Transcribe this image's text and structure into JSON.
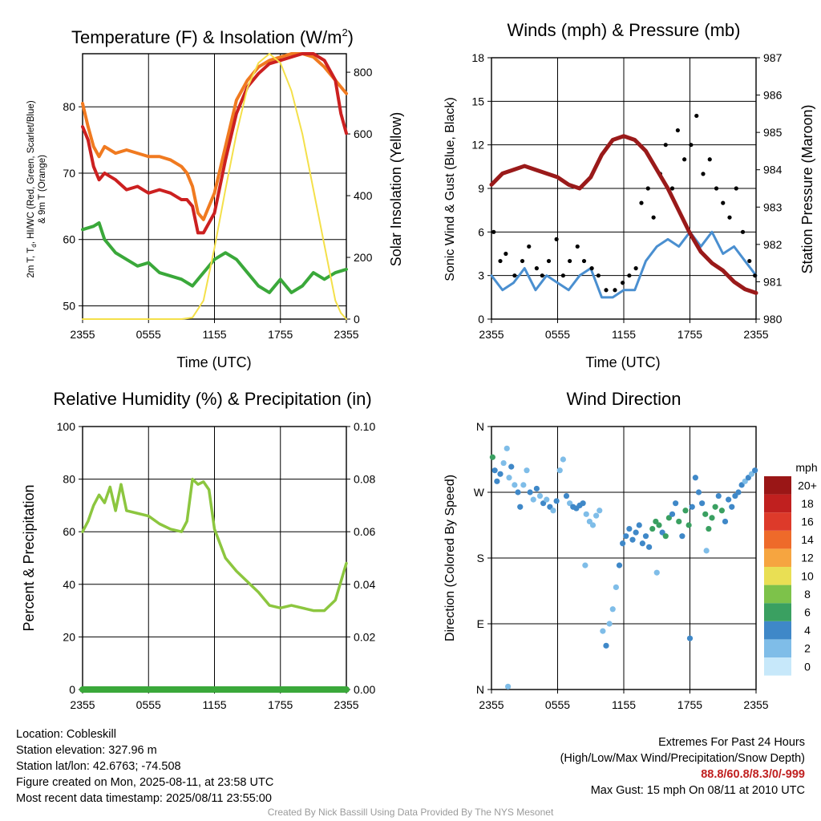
{
  "charts": {
    "temp": {
      "title": "Temperature (F) & Insolation (W/m",
      "title_sup": "2",
      "title_close": ")",
      "ylabel_left_l1": "2m T, T",
      "ylabel_left_sub": "d",
      "ylabel_left_l1b": ", HI/WC (Red, Green, Scarlet/Blue)",
      "ylabel_left_l2": "& 9m T (Orange)",
      "ylabel_right": "Solar Insolation (Yellow)",
      "xlabel": "Time (UTC)"
    },
    "wind": {
      "title": "Winds (mph) & Pressure (mb)",
      "ylabel_left": "Sonic Wind & Gust (Blue, Black)",
      "ylabel_right": "Station Pressure (Maroon)",
      "xlabel": "Time (UTC)"
    },
    "rh": {
      "title": "Relative Humidity (%) & Precipitation (in)",
      "ylabel_left": "Percent & Precipitation"
    },
    "dir": {
      "title": "Wind Direction",
      "ylabel_left": "Direction (Colored By Speed)",
      "legend_title": "mph"
    }
  },
  "chart_data": [
    {
      "id": "temp",
      "type": "line",
      "x_ticks": [
        "2355",
        "0555",
        "1155",
        "1755",
        "2355"
      ],
      "x_range_hours": [
        0,
        24
      ],
      "y_left_range": [
        48,
        88
      ],
      "y_left_ticks": [
        50,
        60,
        70,
        80
      ],
      "y_right_range": [
        0,
        860
      ],
      "y_right_ticks": [
        0,
        200,
        400,
        600,
        800
      ],
      "series": [
        {
          "color": "#f07a20",
          "x": [
            0,
            0.5,
            1,
            1.5,
            2,
            3,
            4,
            5,
            6,
            7,
            8,
            9,
            9.5,
            10,
            10.5,
            11,
            12,
            13,
            14,
            15,
            16,
            17,
            18,
            19,
            20,
            21,
            22,
            23,
            24
          ],
          "y": [
            80.5,
            77,
            74,
            72.5,
            74,
            73,
            73.5,
            73,
            72.5,
            72.5,
            72,
            71,
            70,
            68,
            64,
            63,
            67,
            74,
            81,
            84,
            86,
            87,
            87.5,
            88,
            88,
            87.5,
            86,
            84,
            82
          ]
        },
        {
          "color": "#cc2020",
          "x": [
            0,
            0.5,
            1,
            1.5,
            2,
            3,
            4,
            5,
            6,
            7,
            8,
            9,
            9.5,
            10,
            10.5,
            11,
            12,
            13,
            14,
            15,
            16,
            17,
            18,
            19,
            20,
            21,
            22,
            23,
            23.5,
            24
          ],
          "y": [
            77,
            75,
            71,
            69,
            70,
            69,
            67.5,
            68,
            67,
            67.5,
            67,
            66,
            66,
            65,
            61,
            61,
            64,
            72,
            79,
            83,
            85,
            86.5,
            87,
            87.5,
            88,
            88,
            87,
            84,
            79,
            76
          ]
        },
        {
          "color": "#3aa83a",
          "x": [
            0,
            1,
            1.5,
            2,
            3,
            4,
            5,
            6,
            7,
            8,
            9,
            10,
            11,
            12,
            13,
            14,
            15,
            16,
            17,
            18,
            19,
            20,
            21,
            22,
            23,
            24
          ],
          "y": [
            61.5,
            62,
            62.5,
            60,
            58,
            57,
            56,
            56.5,
            55,
            54.5,
            54,
            53,
            55,
            57,
            58,
            57,
            55,
            53,
            52,
            54,
            52,
            53,
            55,
            54,
            55,
            55.5
          ]
        },
        {
          "color": "#f4e04a",
          "axis": "right",
          "x": [
            0,
            9,
            10,
            11,
            12,
            13,
            14,
            15,
            16,
            17,
            18,
            19,
            20,
            21,
            22,
            23,
            23.5,
            24
          ],
          "y": [
            0,
            0,
            5,
            60,
            230,
            420,
            600,
            750,
            830,
            860,
            830,
            740,
            600,
            420,
            240,
            60,
            20,
            0
          ]
        }
      ]
    },
    {
      "id": "wind",
      "type": "line",
      "x_ticks": [
        "2355",
        "0555",
        "1155",
        "1755",
        "2355"
      ],
      "x_range_hours": [
        0,
        24
      ],
      "y_left_range": [
        0,
        18
      ],
      "y_left_ticks": [
        0,
        3,
        6,
        9,
        12,
        15,
        18
      ],
      "y_right_range": [
        980,
        987
      ],
      "y_right_ticks": [
        980,
        981,
        982,
        983,
        984,
        985,
        986,
        987
      ],
      "series": [
        {
          "color": "#4a8fd0",
          "x": [
            0,
            1,
            2,
            3,
            4,
            5,
            6,
            7,
            8,
            9,
            10,
            11,
            12,
            13,
            14,
            15,
            16,
            17,
            18,
            19,
            20,
            21,
            22,
            23,
            24
          ],
          "y": [
            3,
            2,
            2.5,
            3.5,
            2,
            3,
            2.5,
            2,
            3,
            3.5,
            1.5,
            1.5,
            2,
            2,
            4,
            5,
            5.5,
            5,
            6,
            5,
            6,
            4.5,
            5,
            4,
            3
          ]
        },
        {
          "color": "#000000",
          "kind": "points",
          "x": [
            0.2,
            0.8,
            1.3,
            2.1,
            2.8,
            3.4,
            4.1,
            4.6,
            5.2,
            5.9,
            6.5,
            7.1,
            7.8,
            8.4,
            9.1,
            9.7,
            10.4,
            11.2,
            11.9,
            12.5,
            13.1,
            13.6,
            14.2,
            14.7,
            15.3,
            15.8,
            16.4,
            16.9,
            17.5,
            18.1,
            18.6,
            19.2,
            19.8,
            20.4,
            21,
            21.6,
            22.2,
            22.8,
            23.4,
            23.9
          ],
          "y": [
            6,
            4,
            4.5,
            3,
            4,
            5,
            3.5,
            3,
            4,
            5.5,
            3,
            4,
            5,
            4,
            3.5,
            3,
            2,
            2,
            2.5,
            3,
            3.5,
            8,
            9,
            7,
            10,
            12,
            9,
            13,
            11,
            12,
            14,
            10,
            11,
            9,
            8,
            7,
            9,
            6,
            4,
            3
          ]
        },
        {
          "color": "#9a1a1a",
          "axis": "right",
          "x": [
            0,
            1,
            2,
            3,
            4,
            5,
            6,
            7,
            8,
            9,
            10,
            11,
            12,
            13,
            14,
            15,
            16,
            17,
            18,
            19,
            20,
            21,
            22,
            23,
            24
          ],
          "y": [
            983.6,
            983.9,
            984.0,
            984.1,
            984.0,
            983.9,
            983.8,
            983.6,
            983.5,
            983.8,
            984.4,
            984.8,
            984.9,
            984.8,
            984.5,
            984.0,
            983.5,
            982.9,
            982.3,
            981.8,
            981.5,
            981.3,
            981.0,
            980.8,
            980.7
          ]
        }
      ]
    },
    {
      "id": "rh",
      "type": "line",
      "x_ticks": [
        "2355",
        "0555",
        "1155",
        "1755",
        "2355"
      ],
      "x_range_hours": [
        0,
        24
      ],
      "y_left_range": [
        0,
        100
      ],
      "y_left_ticks": [
        0,
        20,
        40,
        60,
        80,
        100
      ],
      "y_right_range": [
        0,
        0.1
      ],
      "y_right_ticks": [
        "0.00",
        "0.02",
        "0.04",
        "0.06",
        "0.08",
        "0.10"
      ],
      "series": [
        {
          "color": "#8cc63f",
          "x": [
            0,
            0.5,
            1,
            1.5,
            2,
            2.5,
            3,
            3.5,
            4,
            5,
            6,
            7,
            8,
            9,
            9.5,
            10,
            10.5,
            11,
            11.5,
            12,
            13,
            14,
            15,
            16,
            17,
            18,
            19,
            20,
            21,
            22,
            23,
            23.5,
            24
          ],
          "y": [
            60,
            64,
            70,
            74,
            71,
            77,
            68,
            78,
            68,
            67,
            66,
            63,
            61,
            60,
            64,
            80,
            78,
            79,
            76,
            61,
            50,
            45,
            41,
            37,
            32,
            31,
            32,
            31,
            30,
            30,
            34,
            41,
            48
          ]
        },
        {
          "color": "#3aa83a",
          "axis": "right",
          "x": [
            0,
            24
          ],
          "y": [
            0,
            0
          ]
        }
      ]
    },
    {
      "id": "dir",
      "type": "scatter",
      "x_ticks": [
        "2355",
        "0555",
        "1155",
        "1755",
        "2355"
      ],
      "x_range_hours": [
        0,
        24
      ],
      "y_ticks": [
        "N",
        "E",
        "S",
        "W",
        "N"
      ],
      "y_range_deg": [
        0,
        360
      ],
      "legend": {
        "labels": [
          "0",
          "2",
          "4",
          "6",
          "8",
          "10",
          "12",
          "14",
          "16",
          "18",
          "20+"
        ],
        "colors": [
          "#c7e8fa",
          "#7fbde8",
          "#3f88c8",
          "#3aa061",
          "#7dc24a",
          "#e9df54",
          "#f6a540",
          "#ee6a2a",
          "#dd3a2a",
          "#c0201f",
          "#9a1616"
        ]
      },
      "points": [
        {
          "t": 0.1,
          "d": 318,
          "s": 5
        },
        {
          "t": 0.3,
          "d": 300,
          "s": 3
        },
        {
          "t": 0.5,
          "d": 285,
          "s": 4
        },
        {
          "t": 0.8,
          "d": 295,
          "s": 3
        },
        {
          "t": 1.1,
          "d": 310,
          "s": 2
        },
        {
          "t": 1.4,
          "d": 330,
          "s": 1
        },
        {
          "t": 1.6,
          "d": 290,
          "s": 2
        },
        {
          "t": 1.8,
          "d": 305,
          "s": 3
        },
        {
          "t": 2.1,
          "d": 280,
          "s": 2
        },
        {
          "t": 2.4,
          "d": 270,
          "s": 3
        },
        {
          "t": 2.6,
          "d": 250,
          "s": 3
        },
        {
          "t": 2.9,
          "d": 280,
          "s": 2
        },
        {
          "t": 3.2,
          "d": 300,
          "s": 1
        },
        {
          "t": 3.5,
          "d": 270,
          "s": 3
        },
        {
          "t": 3.8,
          "d": 260,
          "s": 2
        },
        {
          "t": 4.1,
          "d": 275,
          "s": 3
        },
        {
          "t": 4.4,
          "d": 265,
          "s": 2
        },
        {
          "t": 4.7,
          "d": 255,
          "s": 3
        },
        {
          "t": 5.0,
          "d": 260,
          "s": 2
        },
        {
          "t": 5.3,
          "d": 250,
          "s": 3
        },
        {
          "t": 5.6,
          "d": 245,
          "s": 2
        },
        {
          "t": 5.9,
          "d": 258,
          "s": 3
        },
        {
          "t": 6.2,
          "d": 300,
          "s": 1
        },
        {
          "t": 6.5,
          "d": 315,
          "s": 1
        },
        {
          "t": 6.8,
          "d": 265,
          "s": 3
        },
        {
          "t": 7.1,
          "d": 255,
          "s": 2
        },
        {
          "t": 7.4,
          "d": 250,
          "s": 3
        },
        {
          "t": 7.7,
          "d": 248,
          "s": 3
        },
        {
          "t": 8.0,
          "d": 252,
          "s": 3
        },
        {
          "t": 8.3,
          "d": 255,
          "s": 3
        },
        {
          "t": 8.6,
          "d": 240,
          "s": 2
        },
        {
          "t": 8.9,
          "d": 230,
          "s": 2
        },
        {
          "t": 9.2,
          "d": 225,
          "s": 1
        },
        {
          "t": 9.5,
          "d": 238,
          "s": 1
        },
        {
          "t": 9.8,
          "d": 245,
          "s": 1
        },
        {
          "t": 10.1,
          "d": 80,
          "s": 2
        },
        {
          "t": 10.4,
          "d": 60,
          "s": 3
        },
        {
          "t": 10.7,
          "d": 90,
          "s": 1
        },
        {
          "t": 11.0,
          "d": 110,
          "s": 1
        },
        {
          "t": 11.3,
          "d": 140,
          "s": 2
        },
        {
          "t": 11.6,
          "d": 170,
          "s": 3
        },
        {
          "t": 11.9,
          "d": 200,
          "s": 4
        },
        {
          "t": 12.2,
          "d": 210,
          "s": 3
        },
        {
          "t": 12.5,
          "d": 220,
          "s": 4
        },
        {
          "t": 12.8,
          "d": 205,
          "s": 3
        },
        {
          "t": 13.1,
          "d": 215,
          "s": 4
        },
        {
          "t": 13.4,
          "d": 225,
          "s": 4
        },
        {
          "t": 13.7,
          "d": 200,
          "s": 3
        },
        {
          "t": 14.0,
          "d": 210,
          "s": 4
        },
        {
          "t": 14.3,
          "d": 195,
          "s": 3
        },
        {
          "t": 14.6,
          "d": 220,
          "s": 5
        },
        {
          "t": 14.9,
          "d": 230,
          "s": 6
        },
        {
          "t": 15.2,
          "d": 225,
          "s": 5
        },
        {
          "t": 15.5,
          "d": 215,
          "s": 4
        },
        {
          "t": 15.8,
          "d": 210,
          "s": 5
        },
        {
          "t": 16.1,
          "d": 235,
          "s": 5
        },
        {
          "t": 16.4,
          "d": 240,
          "s": 4
        },
        {
          "t": 16.7,
          "d": 255,
          "s": 3
        },
        {
          "t": 17.0,
          "d": 230,
          "s": 5
        },
        {
          "t": 17.3,
          "d": 210,
          "s": 4
        },
        {
          "t": 17.6,
          "d": 245,
          "s": 5
        },
        {
          "t": 17.9,
          "d": 225,
          "s": 6
        },
        {
          "t": 18.2,
          "d": 250,
          "s": 4
        },
        {
          "t": 18.5,
          "d": 290,
          "s": 3
        },
        {
          "t": 18.8,
          "d": 270,
          "s": 4
        },
        {
          "t": 19.1,
          "d": 255,
          "s": 4
        },
        {
          "t": 19.4,
          "d": 240,
          "s": 5
        },
        {
          "t": 19.7,
          "d": 220,
          "s": 6
        },
        {
          "t": 20.0,
          "d": 235,
          "s": 5
        },
        {
          "t": 20.3,
          "d": 250,
          "s": 6
        },
        {
          "t": 20.6,
          "d": 265,
          "s": 4
        },
        {
          "t": 20.9,
          "d": 245,
          "s": 5
        },
        {
          "t": 21.2,
          "d": 230,
          "s": 4
        },
        {
          "t": 21.5,
          "d": 260,
          "s": 4
        },
        {
          "t": 21.8,
          "d": 250,
          "s": 3
        },
        {
          "t": 22.1,
          "d": 265,
          "s": 4
        },
        {
          "t": 22.4,
          "d": 270,
          "s": 3
        },
        {
          "t": 22.7,
          "d": 280,
          "s": 3
        },
        {
          "t": 23.0,
          "d": 285,
          "s": 2
        },
        {
          "t": 23.3,
          "d": 290,
          "s": 3
        },
        {
          "t": 23.6,
          "d": 295,
          "s": 2
        },
        {
          "t": 23.9,
          "d": 300,
          "s": 3
        },
        {
          "t": 8.5,
          "d": 170,
          "s": 2
        },
        {
          "t": 18.0,
          "d": 70,
          "s": 3
        },
        {
          "t": 15.0,
          "d": 160,
          "s": 2
        },
        {
          "t": 19.5,
          "d": 190,
          "s": 2
        },
        {
          "t": 1.5,
          "d": 4,
          "s": 1
        }
      ]
    }
  ],
  "info": {
    "location": "Location: Cobleskill",
    "elevation": "Station elevation: 327.96 m",
    "latlon": "Station lat/lon: 42.6763; -74.508",
    "created": "Figure created on Mon, 2025-08-11, at 23:58 UTC",
    "recent": "Most recent data timestamp: 2025/08/11 23:55:00"
  },
  "extremes": {
    "line1": "Extremes For Past 24 Hours",
    "line2": "(High/Low/Max Wind/Precipitation/Snow Depth)",
    "values": "88.8/60.8/8.3/0/-999",
    "gust": "Max Gust: 15 mph On 08/11 at 2010 UTC"
  },
  "credit": "Created By Nick Bassill Using Data Provided By The NYS Mesonet"
}
